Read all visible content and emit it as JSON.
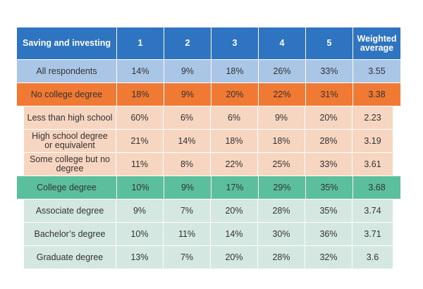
{
  "header": {
    "label": "Saving and investing",
    "c1": "1",
    "c2": "2",
    "c3": "3",
    "c4": "4",
    "c5": "5",
    "weighted": "Weighted average"
  },
  "rows": [
    {
      "label": "All respondents",
      "v": [
        "14%",
        "9%",
        "18%",
        "26%",
        "33%"
      ],
      "avg": "3.55"
    },
    {
      "label": "No college degree",
      "v": [
        "18%",
        "9%",
        "20%",
        "22%",
        "31%"
      ],
      "avg": "3.38"
    },
    {
      "label": "Less than high school",
      "v": [
        "60%",
        "6%",
        "6%",
        "9%",
        "20%"
      ],
      "avg": "2.23"
    },
    {
      "label": "High school degree or equivalent",
      "v": [
        "21%",
        "14%",
        "18%",
        "18%",
        "28%"
      ],
      "avg": "3.19"
    },
    {
      "label": "Some college but no degree",
      "v": [
        "11%",
        "8%",
        "22%",
        "25%",
        "33%"
      ],
      "avg": "3.61"
    },
    {
      "label": "College degree",
      "v": [
        "10%",
        "9%",
        "17%",
        "29%",
        "35%"
      ],
      "avg": "3.68"
    },
    {
      "label": "Associate degree",
      "v": [
        "9%",
        "7%",
        "20%",
        "28%",
        "35%"
      ],
      "avg": "3.74"
    },
    {
      "label": "Bachelor’s degree",
      "v": [
        "10%",
        "11%",
        "14%",
        "30%",
        "36%"
      ],
      "avg": "3.71"
    },
    {
      "label": "Graduate degree",
      "v": [
        "13%",
        "7%",
        "20%",
        "28%",
        "32%"
      ],
      "avg": "3.6"
    }
  ],
  "colors": {
    "header": "#2f74c0",
    "all_respondents": "#a9c6e6",
    "no_college": "#f07a33",
    "no_college_sub": "#f6d5c1",
    "college": "#5bbf9e",
    "college_sub": "#d4e8e1"
  }
}
